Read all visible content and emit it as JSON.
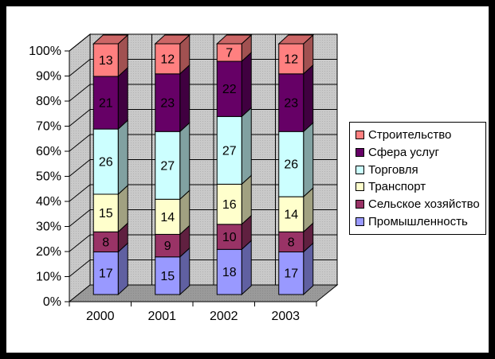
{
  "chart_data": {
    "type": "bar",
    "variant": "3d-stacked-100pct-column",
    "title": "",
    "categories": [
      "2000",
      "2001",
      "2002",
      "2003"
    ],
    "series": [
      {
        "name": "Промышленность",
        "color": "#9999FF",
        "values": [
          17,
          15,
          18,
          17
        ]
      },
      {
        "name": "Сельское хозяйство",
        "color": "#993366",
        "values": [
          8,
          9,
          10,
          8
        ]
      },
      {
        "name": "Транспорт",
        "color": "#FFFFCC",
        "values": [
          15,
          14,
          16,
          14
        ]
      },
      {
        "name": "Торговля",
        "color": "#CCFFFF",
        "values": [
          26,
          27,
          27,
          26
        ]
      },
      {
        "name": "Сфера услуг",
        "color": "#660066",
        "values": [
          21,
          23,
          22,
          23
        ]
      },
      {
        "name": "Строительство",
        "color": "#FF8080",
        "values": [
          13,
          12,
          7,
          12
        ]
      }
    ],
    "y_axis": {
      "min": 0,
      "max": 100,
      "step": 10,
      "tick_labels": [
        "0%",
        "10%",
        "20%",
        "30%",
        "40%",
        "50%",
        "60%",
        "70%",
        "80%",
        "90%",
        "100%"
      ]
    },
    "x_axis": {
      "tick_labels": [
        "2000",
        "2001",
        "2002",
        "2003"
      ]
    },
    "data_labels": true,
    "grid": true,
    "legend": {
      "position": "right",
      "items": [
        "Строительство",
        "Сфера услуг",
        "Торговля",
        "Транспорт",
        "Сельское хозяйство",
        "Промышленность"
      ]
    },
    "colors": {
      "wall": "#c9c9c9",
      "wall_dot": "#b2b2b2",
      "floor": "#9a9a9a",
      "floor_dot": "#8a8a8a",
      "outline": "#000000",
      "background": "#ffffff",
      "frame": "#000000",
      "text": "#000000"
    }
  }
}
